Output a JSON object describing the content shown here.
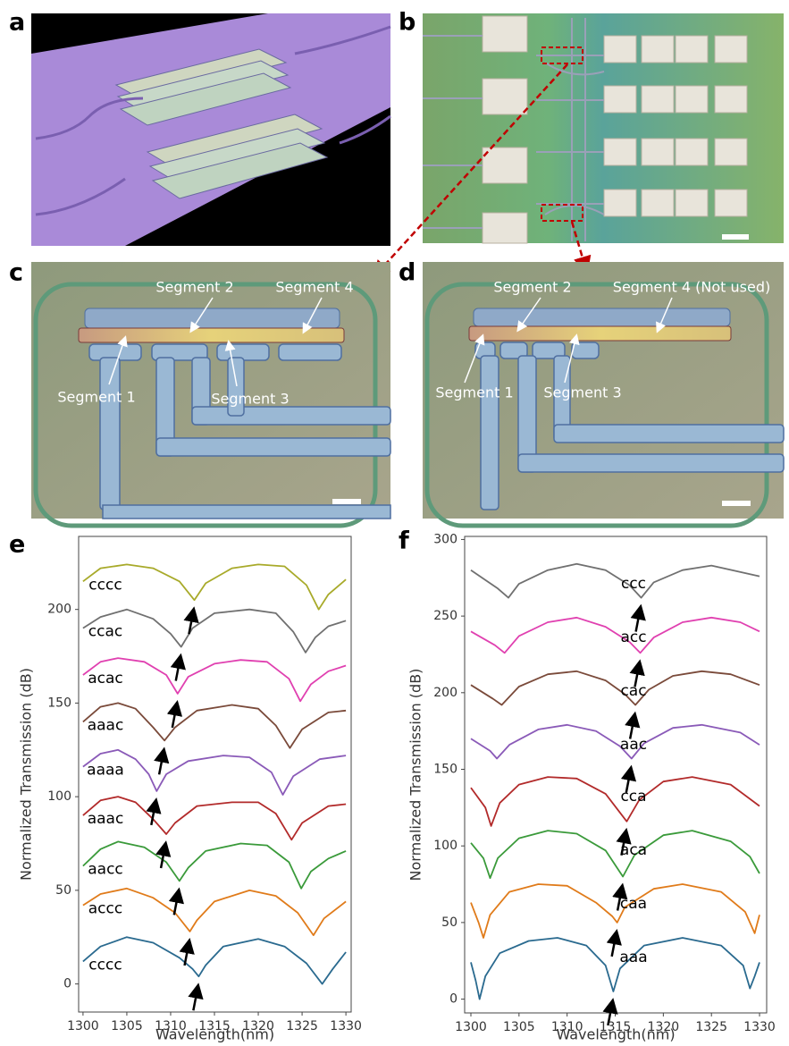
{
  "panel_labels": [
    "a",
    "b",
    "c",
    "d",
    "e",
    "f"
  ],
  "annotations": {
    "c": [
      "Segment 2",
      "Segment 4",
      "Segment 1",
      "Segment 3"
    ],
    "d": [
      "Segment 2",
      "Segment 4 (Not used)",
      "Segment 1",
      "Segment 3"
    ]
  },
  "chart_data": [
    {
      "type": "line",
      "x_label": "Wavelength(nm)",
      "y_label": "Normalized Transmission (dB)",
      "xlim": [
        1299.5,
        1330.6
      ],
      "xticks": [
        1300,
        1305,
        1310,
        1315,
        1320,
        1325,
        1330
      ],
      "ylim": [
        -15,
        239
      ],
      "yticks": [
        0,
        50,
        100,
        150,
        200
      ],
      "grid": false,
      "series": [
        {
          "name": "cccc",
          "color": "#2a6a8f",
          "x": [
            1300,
            1302,
            1305,
            1308,
            1311,
            1312.5,
            1313.2,
            1314,
            1316,
            1320,
            1323,
            1325.5,
            1327.3,
            1328.5,
            1330
          ],
          "values": [
            12,
            20,
            25,
            22,
            14,
            8,
            4,
            10,
            20,
            24,
            20,
            11,
            0,
            8,
            17
          ]
        },
        {
          "name": "accc",
          "color": "#e07b1a",
          "x": [
            1300,
            1302,
            1305,
            1308,
            1310.5,
            1312.2,
            1313,
            1315,
            1319,
            1322,
            1324.5,
            1326.3,
            1327.5,
            1330
          ],
          "values": [
            42,
            48,
            51,
            46,
            38,
            28,
            34,
            44,
            50,
            47,
            38,
            26,
            35,
            44
          ]
        },
        {
          "name": "aacc",
          "color": "#3a9a3a",
          "x": [
            1300,
            1302,
            1304,
            1307,
            1309.5,
            1311,
            1312,
            1314,
            1318,
            1321,
            1323.5,
            1324.9,
            1326,
            1328,
            1330
          ],
          "values": [
            63,
            72,
            76,
            73,
            65,
            55,
            62,
            71,
            75,
            74,
            65,
            51,
            60,
            67,
            71
          ]
        },
        {
          "name": "aaac",
          "color": "#b22a2a",
          "x": [
            1300,
            1302,
            1304,
            1306,
            1308,
            1309.5,
            1310.5,
            1313,
            1317,
            1320,
            1322,
            1323.8,
            1325,
            1328,
            1330
          ],
          "values": [
            90,
            98,
            100,
            97,
            88,
            80,
            86,
            95,
            97,
            97,
            91,
            77,
            86,
            95,
            96
          ]
        },
        {
          "name": "aaaa",
          "color": "#8a5ab8",
          "x": [
            1300,
            1302,
            1304,
            1306,
            1307.5,
            1308.4,
            1309.5,
            1312,
            1316,
            1319,
            1321.5,
            1322.8,
            1324,
            1327,
            1330
          ],
          "values": [
            116,
            123,
            125,
            120,
            112,
            103,
            112,
            119,
            122,
            121,
            113,
            101,
            111,
            120,
            122
          ]
        },
        {
          "name": "aaac",
          "color": "#7a4a3a",
          "x": [
            1300,
            1302,
            1304,
            1306,
            1308,
            1309.3,
            1310.5,
            1313,
            1317,
            1320,
            1322,
            1323.6,
            1325,
            1328,
            1330
          ],
          "values": [
            140,
            148,
            150,
            147,
            137,
            130,
            137,
            146,
            149,
            147,
            138,
            126,
            136,
            145,
            146
          ]
        },
        {
          "name": "acac",
          "color": "#e040b0",
          "x": [
            1300,
            1302,
            1304,
            1307,
            1309.5,
            1310.8,
            1312,
            1315,
            1318,
            1321,
            1323.5,
            1324.8,
            1326,
            1328,
            1330
          ],
          "values": [
            165,
            172,
            174,
            172,
            165,
            155,
            164,
            171,
            173,
            172,
            163,
            151,
            160,
            167,
            170
          ]
        },
        {
          "name": "ccac",
          "color": "#707070",
          "x": [
            1300,
            1302,
            1305,
            1308,
            1310,
            1311.2,
            1312.5,
            1315,
            1319,
            1322,
            1324,
            1325.4,
            1326.5,
            1328,
            1330
          ],
          "values": [
            190,
            196,
            200,
            195,
            187,
            180,
            190,
            198,
            200,
            198,
            188,
            177,
            185,
            191,
            194
          ]
        },
        {
          "name": "cccc",
          "color": "#a8aa2a",
          "x": [
            1300,
            1302,
            1305,
            1308,
            1311,
            1312.7,
            1314,
            1317,
            1320,
            1323,
            1325.5,
            1326.9,
            1328,
            1330
          ],
          "values": [
            215,
            222,
            224,
            222,
            215,
            205,
            214,
            222,
            224,
            223,
            213,
            200,
            208,
            216
          ]
        }
      ]
    },
    {
      "type": "line",
      "x_label": "Wavelength(nm)",
      "y_label": "Normalized Transmission (dB)",
      "xlim": [
        1299.35,
        1330.74
      ],
      "xticks": [
        1300,
        1305,
        1310,
        1315,
        1320,
        1325,
        1330
      ],
      "ylim": [
        -9,
        302
      ],
      "yticks": [
        0,
        50,
        100,
        150,
        200,
        250,
        300
      ],
      "grid": false,
      "series": [
        {
          "name": "aaa",
          "color": "#2a6a8f",
          "x": [
            1300,
            1300.5,
            1300.9,
            1301.5,
            1303,
            1306,
            1309,
            1312,
            1314,
            1314.8,
            1315.5,
            1318,
            1322,
            1326,
            1328.3,
            1329,
            1329.5,
            1330
          ],
          "values": [
            24,
            12,
            0,
            15,
            30,
            38,
            40,
            35,
            22,
            5,
            20,
            35,
            40,
            35,
            22,
            7,
            15,
            24
          ]
        },
        {
          "name": "caa",
          "color": "#e07b1a",
          "x": [
            1300,
            1300.8,
            1301.3,
            1302,
            1304,
            1307,
            1310,
            1313,
            1314.7,
            1315.2,
            1316,
            1319,
            1322,
            1326,
            1328.5,
            1329.5,
            1330
          ],
          "values": [
            63,
            50,
            40,
            55,
            70,
            75,
            74,
            63,
            54,
            50,
            60,
            72,
            75,
            70,
            57,
            43,
            55
          ]
        },
        {
          "name": "aca",
          "color": "#3a9a3a",
          "x": [
            1300,
            1301.3,
            1302,
            1302.8,
            1305,
            1308,
            1311,
            1314,
            1315.8,
            1317,
            1320,
            1323,
            1327,
            1329,
            1330
          ],
          "values": [
            102,
            92,
            79,
            92,
            105,
            110,
            108,
            97,
            80,
            94,
            107,
            110,
            103,
            93,
            82
          ]
        },
        {
          "name": "cca",
          "color": "#b22a2a",
          "x": [
            1300,
            1301.5,
            1302.1,
            1303,
            1305,
            1308,
            1311,
            1314,
            1316.2,
            1317.5,
            1320,
            1323,
            1327,
            1330
          ],
          "values": [
            138,
            125,
            113,
            128,
            140,
            145,
            144,
            134,
            116,
            130,
            142,
            145,
            140,
            126
          ]
        },
        {
          "name": "aac",
          "color": "#8a5ab8",
          "x": [
            1300,
            1302,
            1302.7,
            1304,
            1307,
            1310,
            1313,
            1315.5,
            1316.7,
            1318,
            1321,
            1324,
            1328,
            1330
          ],
          "values": [
            170,
            162,
            157,
            166,
            176,
            179,
            175,
            165,
            157,
            167,
            177,
            179,
            174,
            166
          ]
        },
        {
          "name": "cac",
          "color": "#7a4a3a",
          "x": [
            1300,
            1302.3,
            1303.2,
            1305,
            1308,
            1311,
            1314,
            1316,
            1317.1,
            1318.5,
            1321,
            1324,
            1327,
            1330
          ],
          "values": [
            205,
            196,
            192,
            204,
            212,
            214,
            208,
            199,
            192,
            202,
            211,
            214,
            212,
            205
          ]
        },
        {
          "name": "acc",
          "color": "#e040b0",
          "x": [
            1300,
            1302.5,
            1303.5,
            1305,
            1308,
            1311,
            1314,
            1316.5,
            1317.6,
            1319,
            1322,
            1325,
            1328,
            1330
          ],
          "values": [
            240,
            231,
            226,
            237,
            246,
            249,
            243,
            233,
            226,
            236,
            246,
            249,
            246,
            240
          ]
        },
        {
          "name": "ccc",
          "color": "#707070",
          "x": [
            1300,
            1302.8,
            1303.9,
            1305,
            1308,
            1311,
            1314,
            1316.5,
            1317.7,
            1319,
            1322,
            1325,
            1330
          ],
          "values": [
            280,
            268,
            262,
            271,
            280,
            284,
            280,
            270,
            262,
            272,
            280,
            283,
            276
          ]
        }
      ]
    }
  ]
}
